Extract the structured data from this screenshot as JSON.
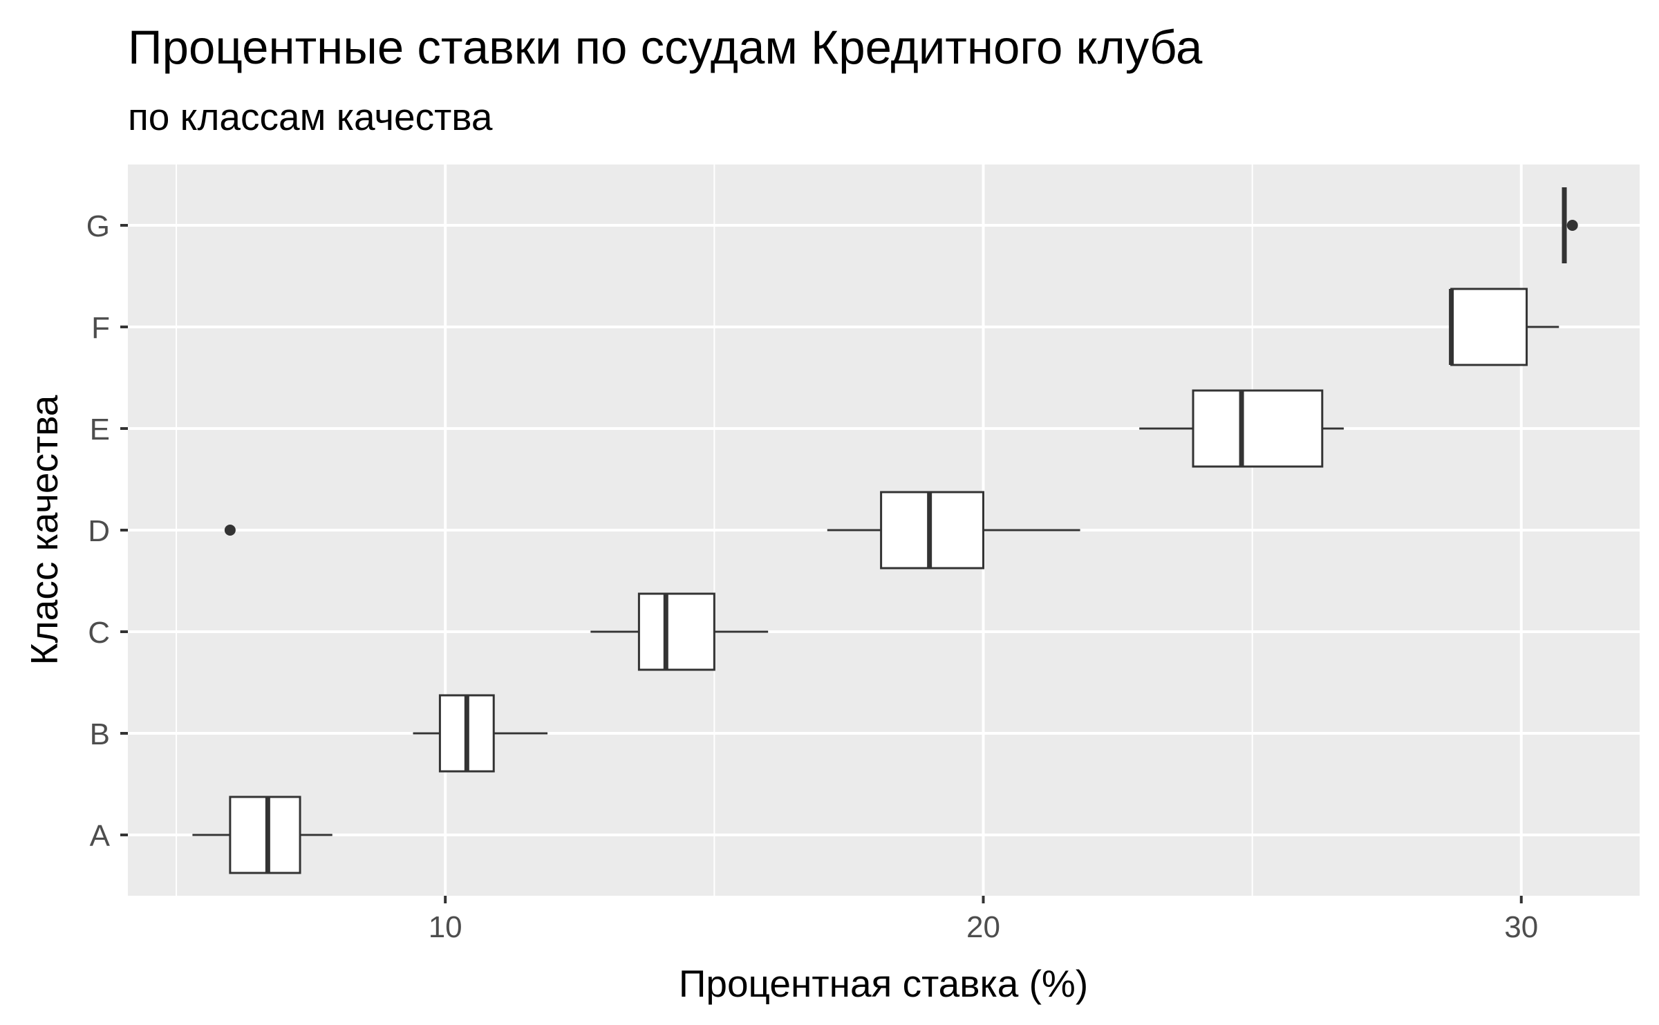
{
  "chart_data": {
    "type": "boxplot",
    "orientation": "horizontal",
    "title": "Процентные ставки по ссудам Кредитного клуба",
    "subtitle": "по классам качества",
    "xlabel": "Процентная ставка (%)",
    "ylabel": "Класс качества",
    "xlim": [
      4.1,
      32.2
    ],
    "x_ticks": [
      10,
      20,
      30
    ],
    "x_tick_labels": [
      "10",
      "20",
      "30"
    ],
    "x_minor_ticks": [
      5,
      15,
      25
    ],
    "categories": [
      "A",
      "B",
      "C",
      "D",
      "E",
      "F",
      "G"
    ],
    "grid": true,
    "colors": {
      "panel": "#ebebeb",
      "grid": "#ffffff",
      "box_fill": "#ffffff",
      "box_line": "#333333",
      "tick_text": "#4d4d4d"
    },
    "boxes": [
      {
        "category": "A",
        "whisker_low": 5.3,
        "q1": 6.0,
        "median": 6.7,
        "q3": 7.3,
        "whisker_high": 7.9,
        "outliers": []
      },
      {
        "category": "B",
        "whisker_low": 9.4,
        "q1": 9.9,
        "median": 10.4,
        "q3": 10.9,
        "whisker_high": 11.9,
        "outliers": []
      },
      {
        "category": "C",
        "whisker_low": 12.7,
        "q1": 13.6,
        "median": 14.1,
        "q3": 15.0,
        "whisker_high": 16.0,
        "outliers": []
      },
      {
        "category": "D",
        "whisker_low": 17.1,
        "q1": 18.1,
        "median": 19.0,
        "q3": 20.0,
        "whisker_high": 21.8,
        "outliers": [
          6.0
        ]
      },
      {
        "category": "E",
        "whisker_low": 22.9,
        "q1": 23.9,
        "median": 24.8,
        "q3": 26.3,
        "whisker_high": 26.7,
        "outliers": []
      },
      {
        "category": "F",
        "whisker_low": 28.7,
        "q1": 28.7,
        "median": 28.7,
        "q3": 30.1,
        "whisker_high": 30.7,
        "outliers": []
      },
      {
        "category": "G",
        "whisker_low": 30.8,
        "q1": 30.8,
        "median": 30.8,
        "q3": 30.8,
        "whisker_high": 30.8,
        "outliers": [
          30.95
        ]
      }
    ]
  }
}
